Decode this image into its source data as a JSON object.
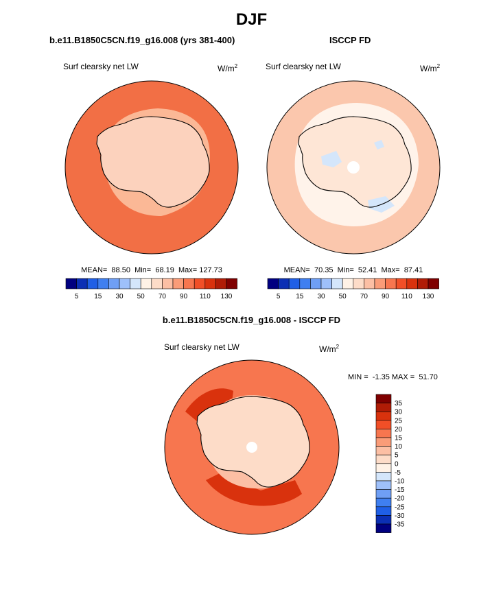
{
  "figure": {
    "season": "DJF"
  },
  "panels": {
    "model": {
      "title": "b.e11.B1850C5CN.f19_g16.008 (yrs 381-400)",
      "variable": "Surf clearsky net LW",
      "units_base": "W/m",
      "units_exp": "2",
      "stats_text": "MEAN=  88.50  Min=  68.19  Max= 127.73"
    },
    "obs": {
      "title": "ISCCP FD",
      "variable": "Surf clearsky net LW",
      "units_base": "W/m",
      "units_exp": "2",
      "stats_text": "MEAN=  70.35  Min=  52.41  Max=  87.41"
    },
    "diff": {
      "title": "b.e11.B1850C5CN.f19_g16.008 - ISCCP FD",
      "variable": "Surf clearsky net LW",
      "units_base": "W/m",
      "units_exp": "2",
      "minmax_text": "MIN =  -1.35 MAX =  51.70"
    }
  },
  "colorbars": {
    "abs_colors": [
      "#000080",
      "#0b2fb4",
      "#1f5fe6",
      "#3f7ff0",
      "#6f9ff5",
      "#9ec0fa",
      "#d4e6fb",
      "#fff2e6",
      "#fddcc8",
      "#fcbfa4",
      "#fa9c78",
      "#f7764f",
      "#f14f27",
      "#d9320d",
      "#b01c06",
      "#7f0000"
    ],
    "abs_labels": [
      "5",
      "15",
      "30",
      "50",
      "70",
      "90",
      "110",
      "130"
    ],
    "diff_colors": [
      "#7f0000",
      "#b01c06",
      "#d9320d",
      "#f14f27",
      "#f7764f",
      "#fa9c78",
      "#fcbfa4",
      "#fddcc8",
      "#fff2e6",
      "#d4e6fb",
      "#9ec0fa",
      "#6f9ff5",
      "#3f7ff0",
      "#1f5fe6",
      "#0b2fb4",
      "#000080"
    ],
    "diff_labels": [
      "35",
      "30",
      "25",
      "20",
      "15",
      "10",
      "5",
      "0",
      "-5",
      "-10",
      "-15",
      "-20",
      "-25",
      "-30",
      "-35"
    ]
  },
  "map_colors": {
    "model_ocean": "#f26f45",
    "model_ice": "#fbb896",
    "model_land": "#fcd2bd",
    "obs_ocean": "#fbc7ad",
    "obs_land": "#fee6d6",
    "obs_light": "#fff3ea",
    "obs_blue": "#d4e6fb",
    "diff_base": "#f7764f",
    "diff_dark": "#d9320d",
    "diff_light": "#fcbfa4",
    "diff_pale": "#fddcc8",
    "pole": "#ffffff"
  }
}
